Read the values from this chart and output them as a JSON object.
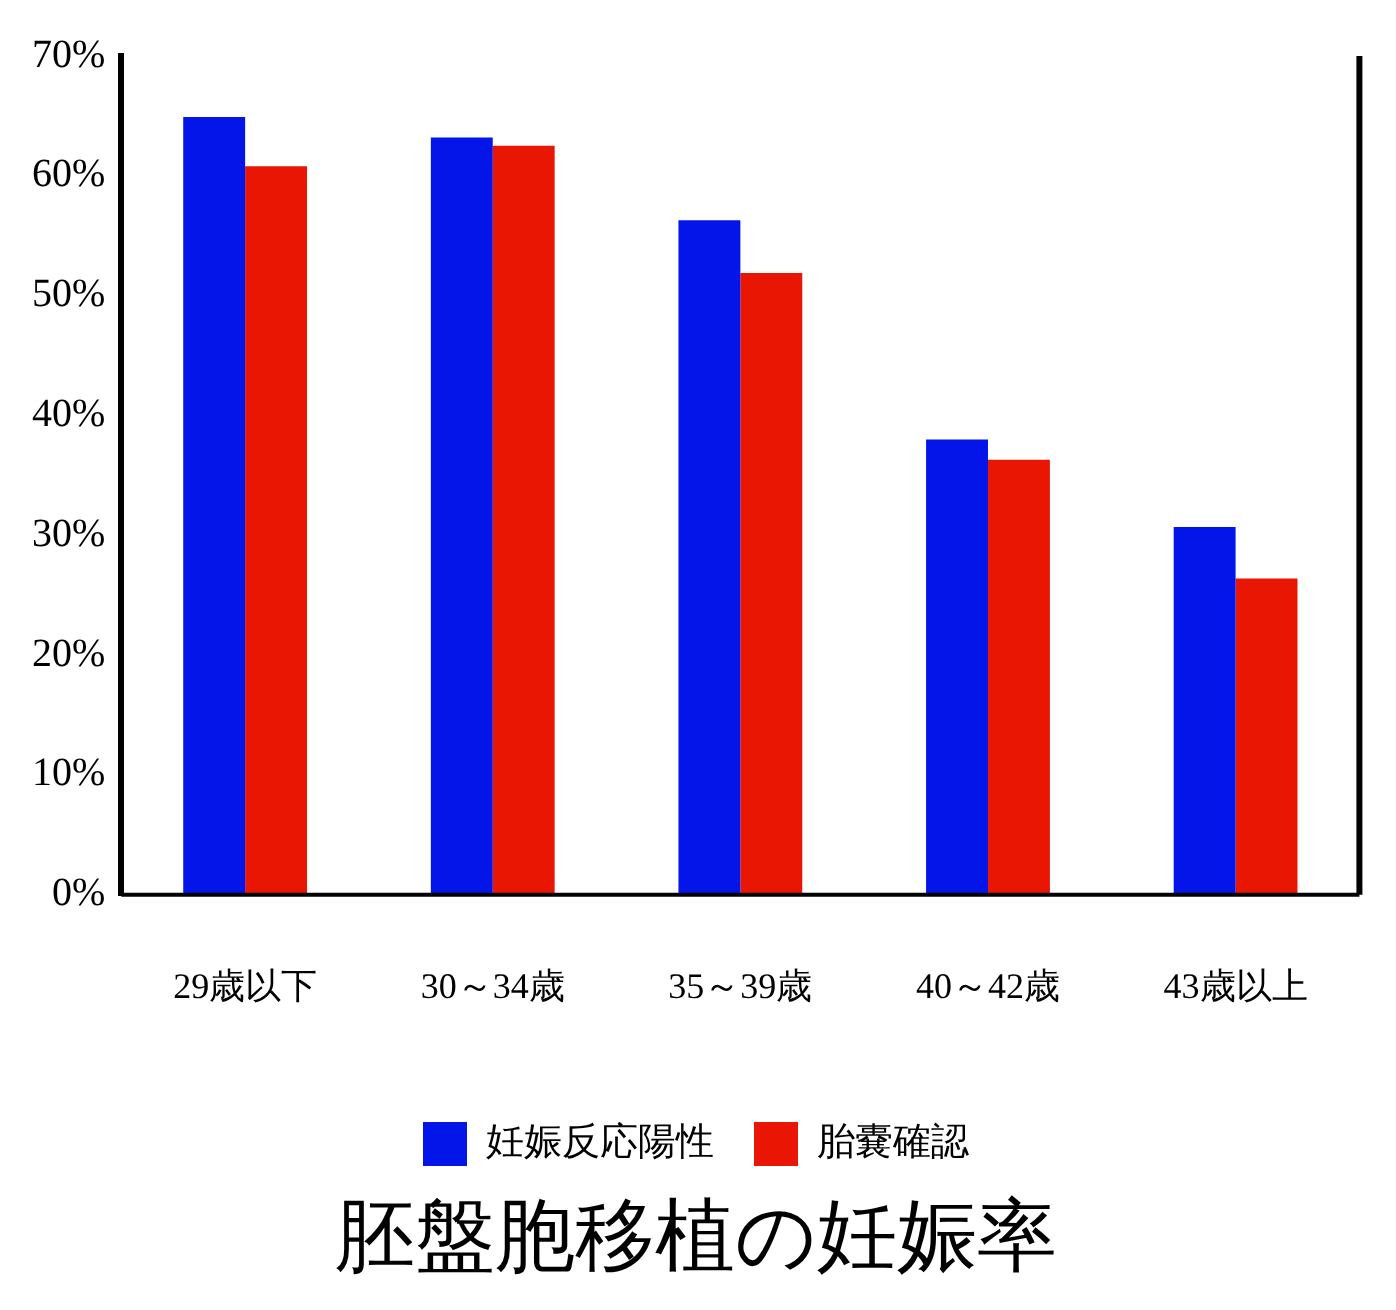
{
  "chart_data": {
    "type": "bar",
    "title": "胚盤胞移植の妊娠率",
    "categories": [
      "29歳以下",
      "30～34歳",
      "35～39歳",
      "40～42歳",
      "43歳以上"
    ],
    "series": [
      {
        "name": "妊娠反応陽性",
        "color": "#0315e8",
        "values": [
          64.9,
          63.2,
          56.3,
          38.0,
          30.7
        ]
      },
      {
        "name": "胎嚢確認",
        "color": "#e91604",
        "values": [
          60.8,
          62.5,
          51.9,
          36.3,
          26.4
        ]
      }
    ],
    "ylim": [
      0,
      70
    ],
    "yticks": [
      {
        "value": 0,
        "label": "0%"
      },
      {
        "value": 10,
        "label": "10%"
      },
      {
        "value": 20,
        "label": "20%"
      },
      {
        "value": 30,
        "label": "30%"
      },
      {
        "value": 40,
        "label": "40%"
      },
      {
        "value": 50,
        "label": "50%"
      },
      {
        "value": 60,
        "label": "60%"
      },
      {
        "value": 70,
        "label": "70%"
      }
    ],
    "grid": false,
    "legend": "bottom"
  }
}
